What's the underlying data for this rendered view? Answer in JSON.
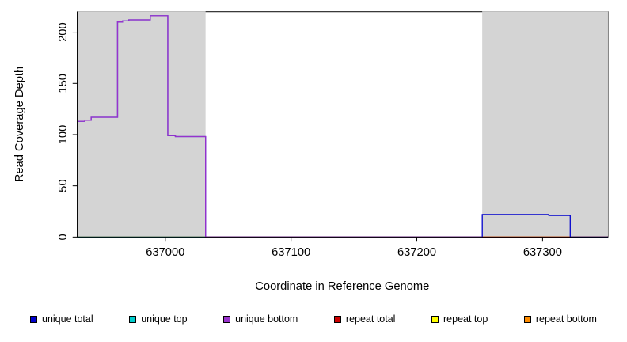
{
  "chart_data": {
    "type": "line",
    "title": "",
    "xlabel": "Coordinate in Reference Genome",
    "ylabel": "Read Coverage Depth",
    "xlim": [
      636930,
      637352
    ],
    "ylim": [
      0,
      220
    ],
    "xticks": [
      637000,
      637100,
      637200,
      637300
    ],
    "yticks": [
      0,
      50,
      100,
      150,
      200
    ],
    "grid": false,
    "background_color": "#ffffff",
    "shaded_regions": [
      {
        "x0": 636930,
        "x1": 637032,
        "color": "#d4d4d4",
        "label": "left-repeat-region"
      },
      {
        "x0": 637252,
        "x1": 637352,
        "color": "#d4d4d4",
        "label": "right-repeat-region"
      }
    ],
    "legend": [
      {
        "label": "unique total",
        "color": "#0000cd"
      },
      {
        "label": "unique top",
        "color": "#00cdcd"
      },
      {
        "label": "unique bottom",
        "color": "#9932cc"
      },
      {
        "label": "repeat total",
        "color": "#cd0000"
      },
      {
        "label": "repeat top",
        "color": "#ffff00"
      },
      {
        "label": "repeat bottom",
        "color": "#ff8c00"
      }
    ],
    "legend_position": "bottom",
    "series": [
      {
        "name": "repeat top",
        "color": "#ffff00",
        "points": [
          [
            636930,
            0
          ],
          [
            637352,
            0
          ]
        ]
      },
      {
        "name": "repeat bottom",
        "color": "#ff8c00",
        "points": [
          [
            636930,
            0
          ],
          [
            637352,
            0
          ]
        ]
      },
      {
        "name": "repeat total",
        "color": "#cd0000",
        "points": [
          [
            636930,
            0
          ],
          [
            637352,
            0
          ]
        ]
      },
      {
        "name": "unique top",
        "color": "#00cdcd",
        "points": [
          [
            636930,
            0
          ],
          [
            637032,
            0
          ]
        ]
      },
      {
        "name": "unique total",
        "color": "#0000cd",
        "points": [
          [
            636930,
            113
          ],
          [
            636936,
            113
          ],
          [
            636936,
            114
          ],
          [
            636941,
            114
          ],
          [
            636941,
            117
          ],
          [
            636962,
            117
          ],
          [
            636962,
            210
          ],
          [
            636966,
            210
          ],
          [
            636966,
            211
          ],
          [
            636971,
            211
          ],
          [
            636971,
            212
          ],
          [
            636988,
            212
          ],
          [
            636988,
            216
          ],
          [
            637002,
            216
          ],
          [
            637002,
            99
          ],
          [
            637008,
            99
          ],
          [
            637008,
            98
          ],
          [
            637032,
            98
          ],
          [
            637032,
            0
          ],
          [
            637252,
            0
          ],
          [
            637252,
            22
          ],
          [
            637305,
            22
          ],
          [
            637305,
            21
          ],
          [
            637322,
            21
          ],
          [
            637322,
            0
          ],
          [
            637352,
            0
          ]
        ]
      },
      {
        "name": "unique bottom",
        "color": "#9932cc",
        "points": [
          [
            636930,
            113
          ],
          [
            636936,
            113
          ],
          [
            636936,
            114
          ],
          [
            636941,
            114
          ],
          [
            636941,
            117
          ],
          [
            636962,
            117
          ],
          [
            636962,
            210
          ],
          [
            636966,
            210
          ],
          [
            636966,
            211
          ],
          [
            636971,
            211
          ],
          [
            636971,
            212
          ],
          [
            636988,
            212
          ],
          [
            636988,
            216
          ],
          [
            637002,
            216
          ],
          [
            637002,
            99
          ],
          [
            637008,
            99
          ],
          [
            637008,
            98
          ],
          [
            637032,
            98
          ],
          [
            637032,
            0
          ],
          [
            637252,
            0
          ]
        ]
      }
    ]
  }
}
